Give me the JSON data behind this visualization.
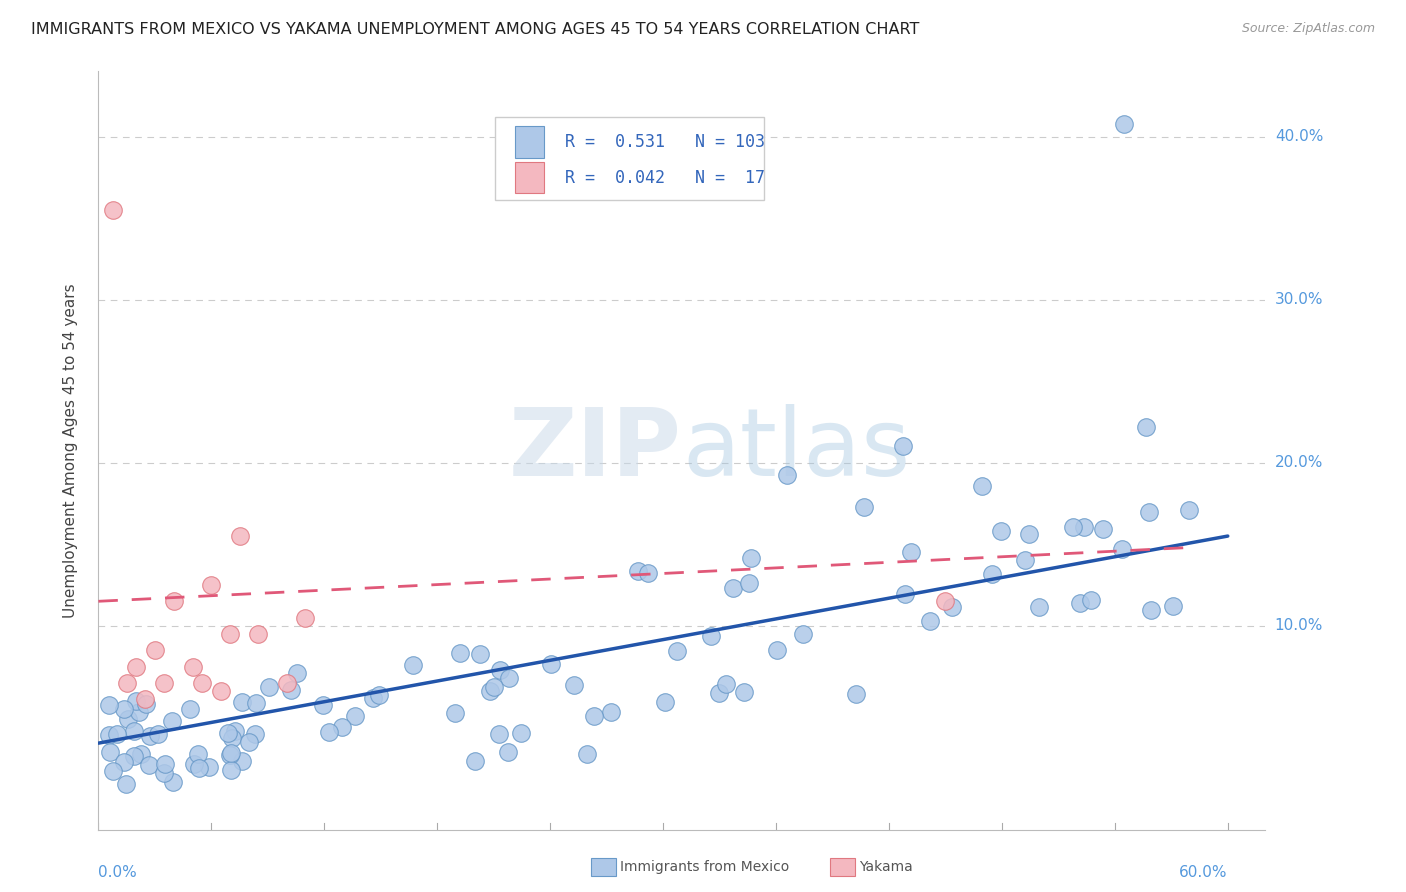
{
  "title": "IMMIGRANTS FROM MEXICO VS YAKAMA UNEMPLOYMENT AMONG AGES 45 TO 54 YEARS CORRELATION CHART",
  "source": "Source: ZipAtlas.com",
  "ylabel": "Unemployment Among Ages 45 to 54 years",
  "xlim": [
    0.0,
    0.62
  ],
  "ylim": [
    -0.025,
    0.44
  ],
  "yticks": [
    0.0,
    0.1,
    0.2,
    0.3,
    0.4
  ],
  "ytick_labels": [
    "",
    "10.0%",
    "20.0%",
    "30.0%",
    "40.0%"
  ],
  "legend_blue_r": "0.531",
  "legend_blue_n": "103",
  "legend_pink_r": "0.042",
  "legend_pink_n": " 17",
  "legend_label_blue": "Immigrants from Mexico",
  "legend_label_pink": "Yakama",
  "blue_fill": "#aec8e8",
  "blue_edge": "#6899c8",
  "pink_fill": "#f4b8c0",
  "pink_edge": "#e07880",
  "blue_line_color": "#2255aa",
  "pink_line_color": "#e05878",
  "watermark_color": "#d8e8f0",
  "grid_color": "#cccccc",
  "tick_color": "#5599dd",
  "background": "#ffffff",
  "blue_trend_x0": 0.0,
  "blue_trend_y0": 0.028,
  "blue_trend_x1": 0.6,
  "blue_trend_y1": 0.155,
  "pink_trend_x0": 0.0,
  "pink_trend_y0": 0.115,
  "pink_trend_x1": 0.58,
  "pink_trend_y1": 0.148
}
